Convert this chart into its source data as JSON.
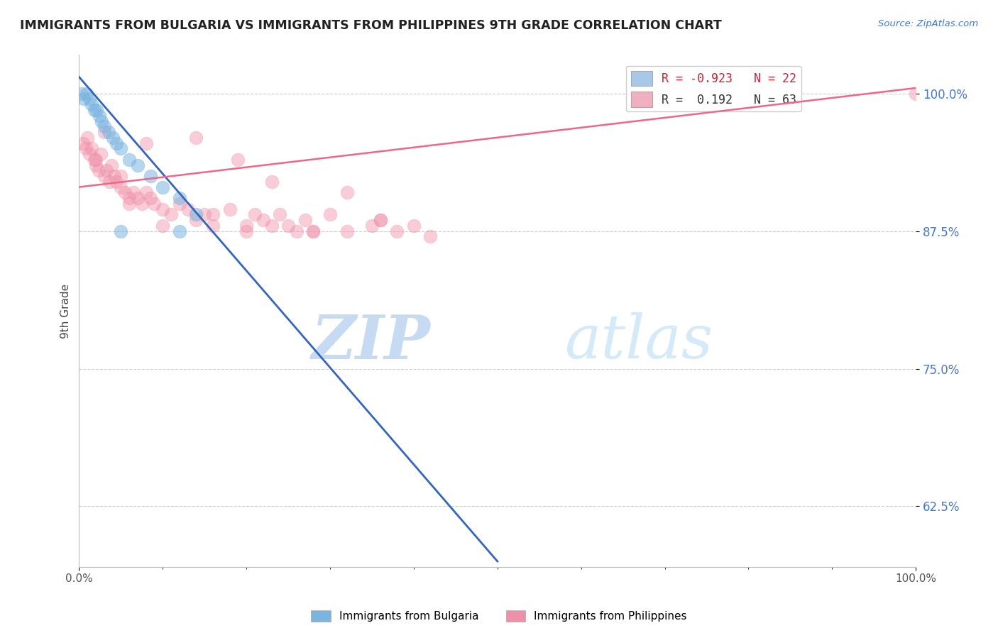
{
  "title": "IMMIGRANTS FROM BULGARIA VS IMMIGRANTS FROM PHILIPPINES 9TH GRADE CORRELATION CHART",
  "source_text": "Source: ZipAtlas.com",
  "ylabel_label": "9th Grade",
  "y_ticks": [
    62.5,
    75.0,
    87.5,
    100.0
  ],
  "y_tick_labels": [
    "62.5%",
    "75.0%",
    "87.5%",
    "100.0%"
  ],
  "xlim": [
    0.0,
    100.0
  ],
  "ylim": [
    57.0,
    103.5
  ],
  "watermark_zip": "ZIP",
  "watermark_atlas": "atlas",
  "watermark_color": "#c8dff0",
  "bulgaria_color": "#7ab4e0",
  "philippines_color": "#f090a8",
  "bulgaria_line_color": "#3366bb",
  "philippines_line_color": "#ee6688",
  "legend_blue_label": "R = -0.923   N = 22",
  "legend_pink_label": "R =  0.192   N = 63",
  "legend_blue_color": "#a8c8e8",
  "legend_pink_color": "#f0b0c0",
  "bulgaria_scatter_x": [
    0.3,
    0.6,
    0.9,
    1.2,
    1.5,
    1.8,
    2.1,
    2.4,
    2.7,
    3.0,
    3.5,
    4.0,
    4.5,
    5.0,
    6.0,
    7.0,
    8.5,
    10.0,
    12.0,
    14.0,
    5.0,
    12.0
  ],
  "bulgaria_scatter_y": [
    100.0,
    99.5,
    100.0,
    99.5,
    99.0,
    98.5,
    98.5,
    98.0,
    97.5,
    97.0,
    96.5,
    96.0,
    95.5,
    95.0,
    94.0,
    93.5,
    92.5,
    91.5,
    90.5,
    89.0,
    87.5,
    87.5
  ],
  "philippines_scatter_x": [
    0.5,
    0.8,
    1.0,
    1.2,
    1.5,
    1.8,
    2.0,
    2.3,
    2.6,
    3.0,
    3.3,
    3.6,
    3.9,
    4.2,
    4.5,
    5.0,
    5.5,
    6.0,
    6.5,
    7.0,
    7.5,
    8.0,
    8.5,
    9.0,
    10.0,
    11.0,
    12.0,
    13.0,
    14.0,
    15.0,
    16.0,
    18.0,
    20.0,
    21.0,
    22.0,
    23.0,
    24.0,
    25.0,
    26.0,
    27.0,
    28.0,
    30.0,
    32.0,
    35.0,
    36.0,
    38.0,
    40.0,
    42.0,
    100.0,
    3.0,
    8.0,
    14.0,
    19.0,
    23.0,
    32.0,
    6.0,
    10.0,
    16.0,
    20.0,
    28.0,
    36.0,
    2.0,
    5.0
  ],
  "philippines_scatter_y": [
    95.5,
    95.0,
    96.0,
    94.5,
    95.0,
    94.0,
    93.5,
    93.0,
    94.5,
    92.5,
    93.0,
    92.0,
    93.5,
    92.5,
    92.0,
    91.5,
    91.0,
    90.5,
    91.0,
    90.5,
    90.0,
    91.0,
    90.5,
    90.0,
    89.5,
    89.0,
    90.0,
    89.5,
    88.5,
    89.0,
    88.0,
    89.5,
    88.0,
    89.0,
    88.5,
    88.0,
    89.0,
    88.0,
    87.5,
    88.5,
    87.5,
    89.0,
    87.5,
    88.0,
    88.5,
    87.5,
    88.0,
    87.0,
    100.0,
    96.5,
    95.5,
    96.0,
    94.0,
    92.0,
    91.0,
    90.0,
    88.0,
    89.0,
    87.5,
    87.5,
    88.5,
    94.0,
    92.5
  ],
  "bulgaria_line_x": [
    0.0,
    50.0
  ],
  "bulgaria_line_y": [
    101.5,
    57.5
  ],
  "philippines_line_x": [
    0.0,
    100.0
  ],
  "philippines_line_y": [
    91.5,
    100.5
  ]
}
